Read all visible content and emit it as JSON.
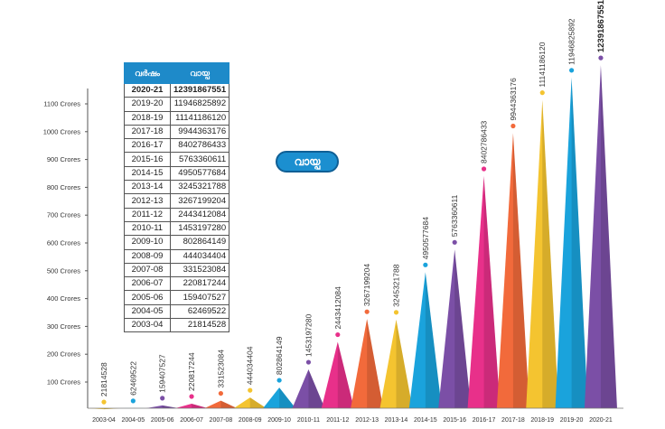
{
  "title": "വായ്പ",
  "table": {
    "headers": [
      "വർഷം",
      "വായ്പ"
    ],
    "rows": [
      {
        "year": "2020-21",
        "amount": "12391867551"
      },
      {
        "year": "2019-20",
        "amount": "11946825892"
      },
      {
        "year": "2018-19",
        "amount": "11141186120"
      },
      {
        "year": "2017-18",
        "amount": "9944363176"
      },
      {
        "year": "2016-17",
        "amount": "8402786433"
      },
      {
        "year": "2015-16",
        "amount": "5763360611"
      },
      {
        "year": "2014-15",
        "amount": "4950577684"
      },
      {
        "year": "2013-14",
        "amount": "3245321788"
      },
      {
        "year": "2012-13",
        "amount": "3267199204"
      },
      {
        "year": "2011-12",
        "amount": "2443412084"
      },
      {
        "year": "2010-11",
        "amount": "1453197280"
      },
      {
        "year": "2009-10",
        "amount": "802864149"
      },
      {
        "year": "2008-09",
        "amount": "444034404"
      },
      {
        "year": "2007-08",
        "amount": "331523084"
      },
      {
        "year": "2006-07",
        "amount": "220817244"
      },
      {
        "year": "2005-06",
        "amount": "159407527"
      },
      {
        "year": "2004-05",
        "amount": "62469522"
      },
      {
        "year": "2003-04",
        "amount": "21814528"
      }
    ]
  },
  "chart_data": {
    "type": "bar",
    "title": "വായ്പ",
    "xlabel": "",
    "ylabel": "",
    "ylim": [
      0,
      1200
    ],
    "y_tick_values": [
      100,
      200,
      300,
      400,
      500,
      600,
      700,
      800,
      900,
      1000,
      1100
    ],
    "y_tick_labels": [
      "100 Crores",
      "200 Crores",
      "300 Crores",
      "400 Crores",
      "500 Crores",
      "600 Crores",
      "700 Crores",
      "800 Crores",
      "900 Crores",
      "1000 Crores",
      "1100 Crores"
    ],
    "categories": [
      "2003-04",
      "2004-05",
      "2005-06",
      "2006-07",
      "2007-08",
      "2008-09",
      "2009-10",
      "2010-11",
      "2011-12",
      "2012-13",
      "2013-14",
      "2014-15",
      "2015-16",
      "2016-17",
      "2017-18",
      "2018-19",
      "2019-20",
      "2020-21"
    ],
    "values": [
      21814528,
      62469522,
      159407527,
      220817244,
      331523084,
      444034404,
      802864149,
      1453197280,
      2443412084,
      3267199204,
      3245321788,
      4950577684,
      5763360611,
      8402786433,
      9944363176,
      11141186120,
      11946825892,
      12391867551
    ],
    "data_labels": [
      "21814528",
      "62469522",
      "159407527",
      "220817244",
      "331523084",
      "444034404",
      "802864149",
      "1453197280",
      "2443412084",
      "3267199204",
      "3245321788",
      "4950577684",
      "5763360611",
      "8402786433",
      "9944363176",
      "11141186120",
      "11946825892",
      "12391867551"
    ],
    "colors": [
      "#f4c430",
      "#1aa3dc",
      "#7b4fa6",
      "#e8308a",
      "#f26a3b",
      "#f4c430",
      "#1aa3dc",
      "#7b4fa6",
      "#e8308a",
      "#f26a3b",
      "#f4c430",
      "#1aa3dc",
      "#7b4fa6",
      "#e8308a",
      "#f26a3b",
      "#f4c430",
      "#1aa3dc",
      "#7b4fa6"
    ],
    "grid": false,
    "legend": "none"
  }
}
